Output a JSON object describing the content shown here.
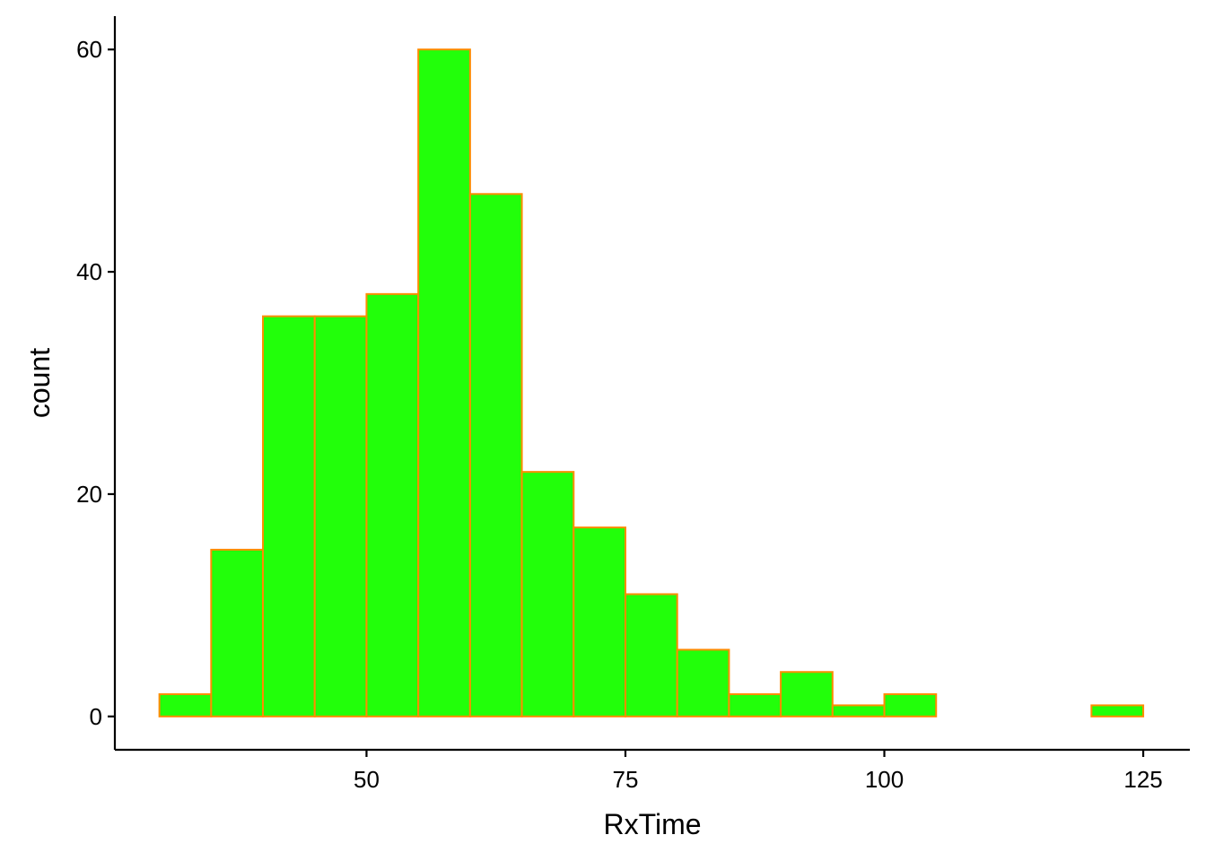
{
  "chart_data": {
    "type": "bar",
    "subtype": "histogram",
    "title": "",
    "xlabel": "RxTime",
    "ylabel": "count",
    "bin_width": 5,
    "bins": [
      {
        "x_start": 30,
        "x_end": 35,
        "count": 2
      },
      {
        "x_start": 35,
        "x_end": 40,
        "count": 15
      },
      {
        "x_start": 40,
        "x_end": 45,
        "count": 36
      },
      {
        "x_start": 45,
        "x_end": 50,
        "count": 36
      },
      {
        "x_start": 50,
        "x_end": 55,
        "count": 38
      },
      {
        "x_start": 55,
        "x_end": 60,
        "count": 60
      },
      {
        "x_start": 60,
        "x_end": 65,
        "count": 47
      },
      {
        "x_start": 65,
        "x_end": 70,
        "count": 22
      },
      {
        "x_start": 70,
        "x_end": 75,
        "count": 17
      },
      {
        "x_start": 75,
        "x_end": 80,
        "count": 11
      },
      {
        "x_start": 80,
        "x_end": 85,
        "count": 6
      },
      {
        "x_start": 85,
        "x_end": 90,
        "count": 2
      },
      {
        "x_start": 90,
        "x_end": 95,
        "count": 4
      },
      {
        "x_start": 95,
        "x_end": 100,
        "count": 1
      },
      {
        "x_start": 100,
        "x_end": 105,
        "count": 2
      },
      {
        "x_start": 105,
        "x_end": 110,
        "count": 0
      },
      {
        "x_start": 110,
        "x_end": 115,
        "count": 0
      },
      {
        "x_start": 115,
        "x_end": 120,
        "count": 0
      },
      {
        "x_start": 120,
        "x_end": 125,
        "count": 1
      }
    ],
    "xlim": [
      25.7,
      129.5
    ],
    "ylim": [
      -3,
      63
    ],
    "x_ticks": [
      50,
      75,
      100,
      125
    ],
    "y_ticks": [
      0,
      20,
      40,
      60
    ],
    "grid": false,
    "legend": "none",
    "colors": {
      "bar_fill": "#22ff0a",
      "bar_outline": "#ff8c00",
      "axis": "#000000"
    }
  }
}
